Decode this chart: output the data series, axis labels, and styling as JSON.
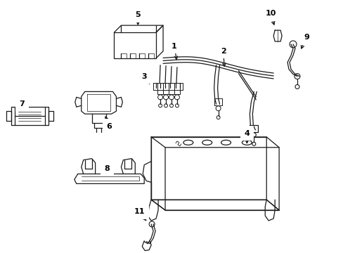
{
  "bg_color": "#ffffff",
  "line_color": "#1a1a1a",
  "fig_width": 4.89,
  "fig_height": 3.6,
  "dpi": 100,
  "arrows": {
    "1": {
      "lp": [
        248,
        65
      ],
      "ae": [
        252,
        88
      ]
    },
    "2": {
      "lp": [
        318,
        72
      ],
      "ae": [
        320,
        98
      ]
    },
    "3": {
      "lp": [
        205,
        108
      ],
      "ae": [
        215,
        122
      ]
    },
    "4": {
      "lp": [
        352,
        190
      ],
      "ae": [
        352,
        208
      ]
    },
    "5": {
      "lp": [
        196,
        20
      ],
      "ae": [
        196,
        38
      ]
    },
    "6": {
      "lp": [
        155,
        180
      ],
      "ae": [
        148,
        162
      ]
    },
    "7": {
      "lp": [
        30,
        148
      ],
      "ae": [
        38,
        158
      ]
    },
    "8": {
      "lp": [
        152,
        240
      ],
      "ae": [
        162,
        252
      ]
    },
    "9": {
      "lp": [
        437,
        52
      ],
      "ae": [
        428,
        72
      ]
    },
    "10": {
      "lp": [
        386,
        18
      ],
      "ae": [
        392,
        38
      ]
    },
    "11": {
      "lp": [
        198,
        302
      ],
      "ae": [
        210,
        318
      ]
    }
  }
}
